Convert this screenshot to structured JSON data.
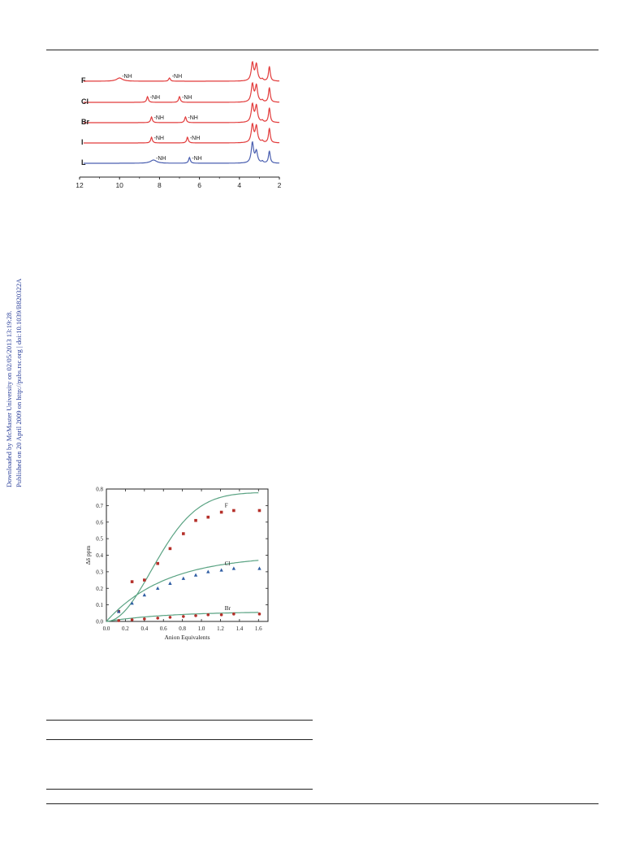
{
  "watermark": {
    "line1": "Downloaded by McMaster University on 02/05/2013 13:19:28.",
    "line2": "Published on 20 April 2009 on http://pubs.rsc.org | doi:10.1039/B820322A"
  },
  "nmr_figure": {
    "traces": [
      {
        "label": "F",
        "sup": "-",
        "color": "#e23b3b",
        "peak_labels": [
          "-NH",
          "-NH"
        ],
        "peak_ppm": [
          10.0,
          7.5
        ]
      },
      {
        "label": "Cl",
        "sup": "-",
        "color": "#e23b3b",
        "peak_labels": [
          "-NH",
          "-NH"
        ],
        "peak_ppm": [
          8.6,
          7.0
        ]
      },
      {
        "label": "Br",
        "sup": "-",
        "color": "#e23b3b",
        "peak_labels": [
          "-NH",
          "-NH"
        ],
        "peak_ppm": [
          8.4,
          6.7
        ]
      },
      {
        "label": "I",
        "sup": "-",
        "color": "#e23b3b",
        "peak_labels": [
          "-NH",
          "-NH"
        ],
        "peak_ppm": [
          8.4,
          6.6
        ]
      },
      {
        "label": "L",
        "sup": "1",
        "color": "#4a5fb0",
        "peak_labels": [
          "-NH",
          "-NH"
        ],
        "peak_ppm": [
          8.3,
          6.5
        ]
      }
    ],
    "label_sub": "2",
    "x_ticks": [
      "12",
      "10",
      "8",
      "6",
      "4",
      "2"
    ],
    "x_range": [
      12,
      2
    ]
  },
  "chart_data": {
    "type": "scatter",
    "xlabel": "Anion Equivalents",
    "ylabel": "Δδ ppm",
    "xlim": [
      0.0,
      1.7
    ],
    "ylim": [
      0.0,
      0.8
    ],
    "x_ticks": [
      "0.0",
      "0.2",
      "0.4",
      "0.6",
      "0.8",
      "1.0",
      "1.2",
      "1.4",
      "1.6"
    ],
    "y_ticks": [
      "0.0",
      "0.1",
      "0.2",
      "0.3",
      "0.4",
      "0.5",
      "0.6",
      "0.7",
      "0.8"
    ],
    "curve_color": "#5aa383",
    "series": [
      {
        "name": "F",
        "sup": "-",
        "marker": "square",
        "color": "#b5302a",
        "x": [
          0.13,
          0.27,
          0.4,
          0.54,
          0.67,
          0.81,
          0.94,
          1.07,
          1.21,
          1.34,
          1.61
        ],
        "y": [
          0.06,
          0.24,
          0.25,
          0.35,
          0.44,
          0.53,
          0.61,
          0.63,
          0.66,
          0.67,
          0.67
        ],
        "fit_max": 0.78,
        "fit_k": 1.5,
        "fit_power": 2.0
      },
      {
        "name": "Cl",
        "sup": "-",
        "marker": "triangle",
        "color": "#2f5da3",
        "x": [
          0.13,
          0.27,
          0.4,
          0.54,
          0.67,
          0.81,
          0.94,
          1.07,
          1.21,
          1.34,
          1.61
        ],
        "y": [
          0.06,
          0.11,
          0.16,
          0.2,
          0.23,
          0.26,
          0.28,
          0.3,
          0.31,
          0.32,
          0.32
        ],
        "fit_max": 0.4,
        "fit_k": 1.6,
        "fit_power": 1.0
      },
      {
        "name": "Br",
        "sup": "-",
        "marker": "circle",
        "color": "#b5302a",
        "x": [
          0.13,
          0.27,
          0.4,
          0.54,
          0.67,
          0.81,
          0.94,
          1.07,
          1.21,
          1.34,
          1.61
        ],
        "y": [
          0.005,
          0.01,
          0.015,
          0.02,
          0.025,
          0.03,
          0.035,
          0.04,
          0.04,
          0.045,
          0.045
        ],
        "fit_max": 0.06,
        "fit_k": 1.5,
        "fit_power": 1.0
      }
    ]
  }
}
